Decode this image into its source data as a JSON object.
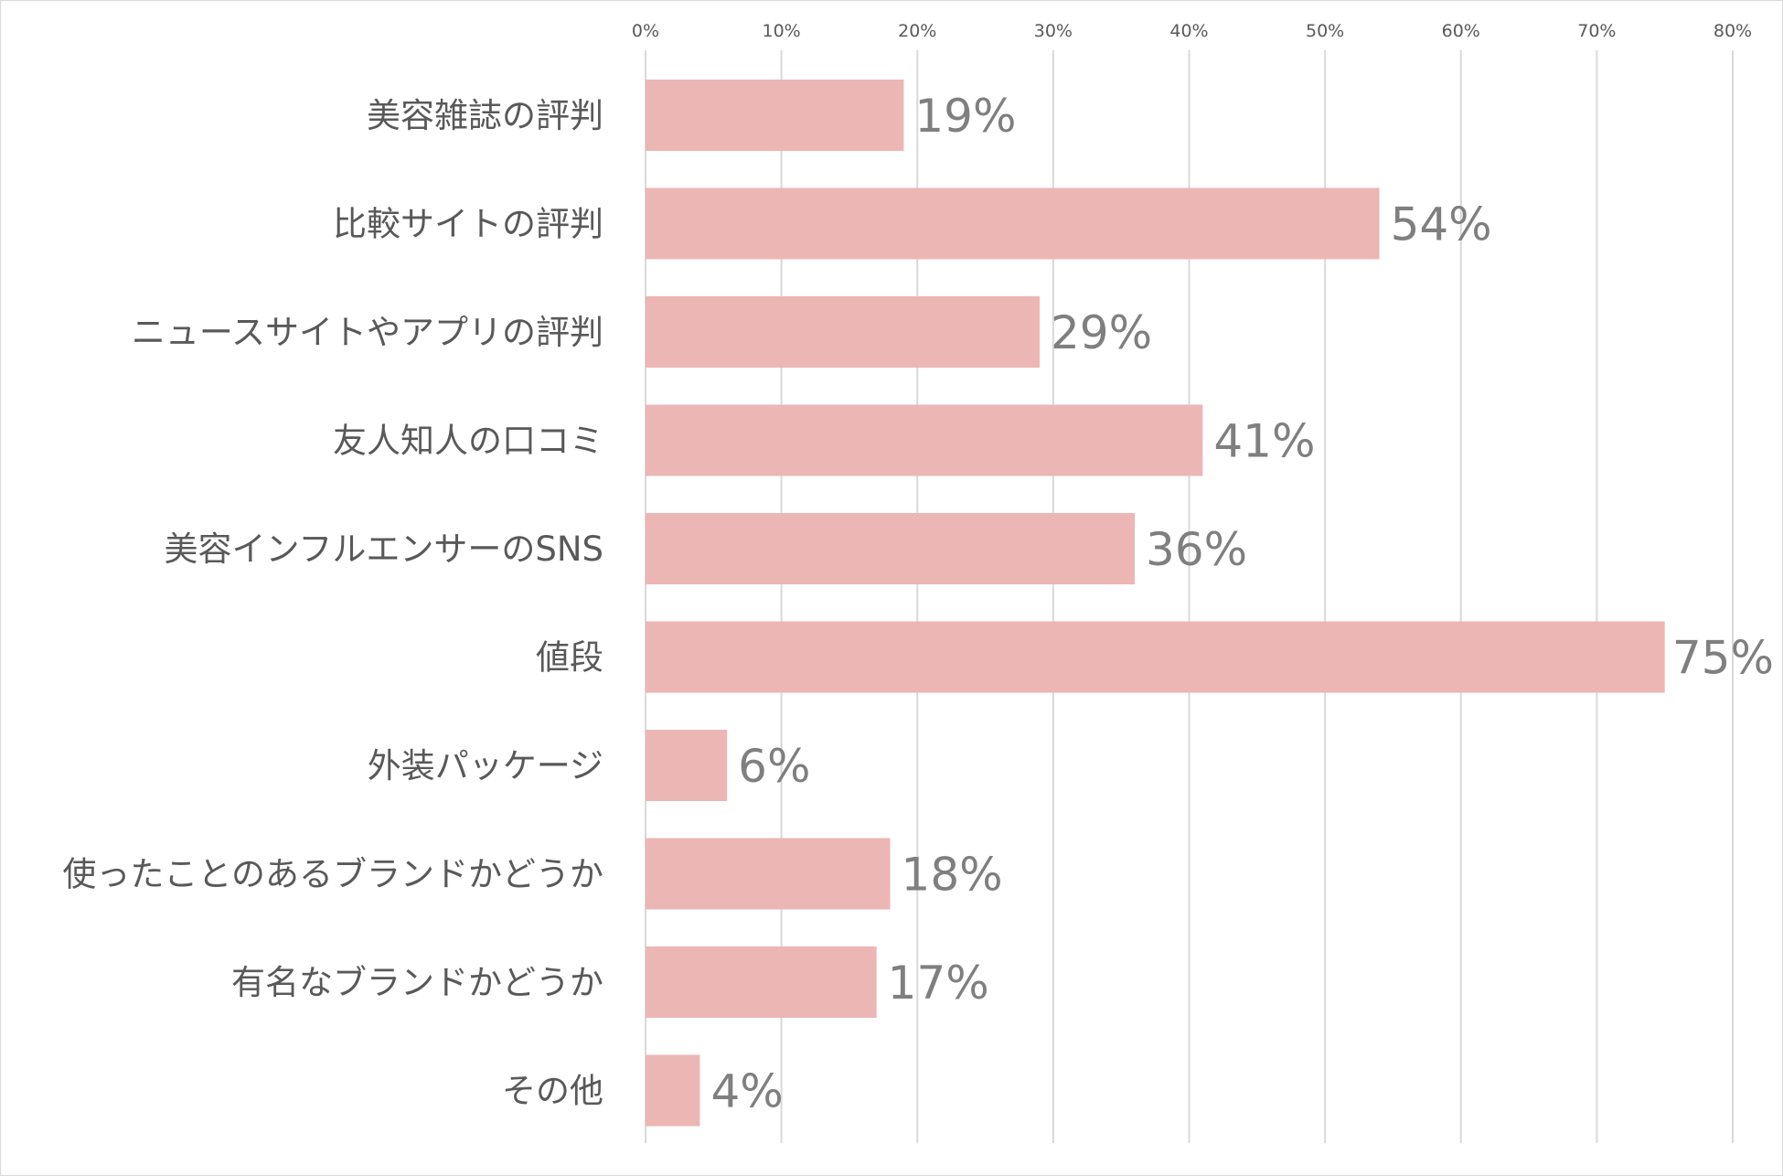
{
  "chart_data": {
    "type": "bar",
    "orientation": "horizontal",
    "categories": [
      "美容雑誌の評判",
      "比較サイトの評判",
      "ニュースサイトやアプリの評判",
      "友人知人の口コミ",
      "美容インフルエンサーのSNS",
      "値段",
      "外装パッケージ",
      "使ったことのあるブランドかどうか",
      "有名なブランドかどうか",
      "その他"
    ],
    "values": [
      19,
      54,
      29,
      41,
      36,
      75,
      6,
      18,
      17,
      4
    ],
    "data_labels": [
      "19%",
      "54%",
      "29%",
      "41%",
      "36%",
      "75%",
      "6%",
      "18%",
      "17%",
      "4%"
    ],
    "xlim": [
      0,
      80
    ],
    "x_ticks": [
      "0%",
      "10%",
      "20%",
      "30%",
      "40%",
      "50%",
      "60%",
      "70%",
      "80%"
    ],
    "x_axis_position": "top",
    "grid": "vertical",
    "legend": "none",
    "title": "",
    "xlabel": "",
    "ylabel": ""
  },
  "colors": {
    "bar": "#ecb6b4",
    "grid": "#d9d9d9",
    "tick_text": "#595959",
    "category_text": "#595959",
    "data_label_text": "#7f7f7f"
  }
}
